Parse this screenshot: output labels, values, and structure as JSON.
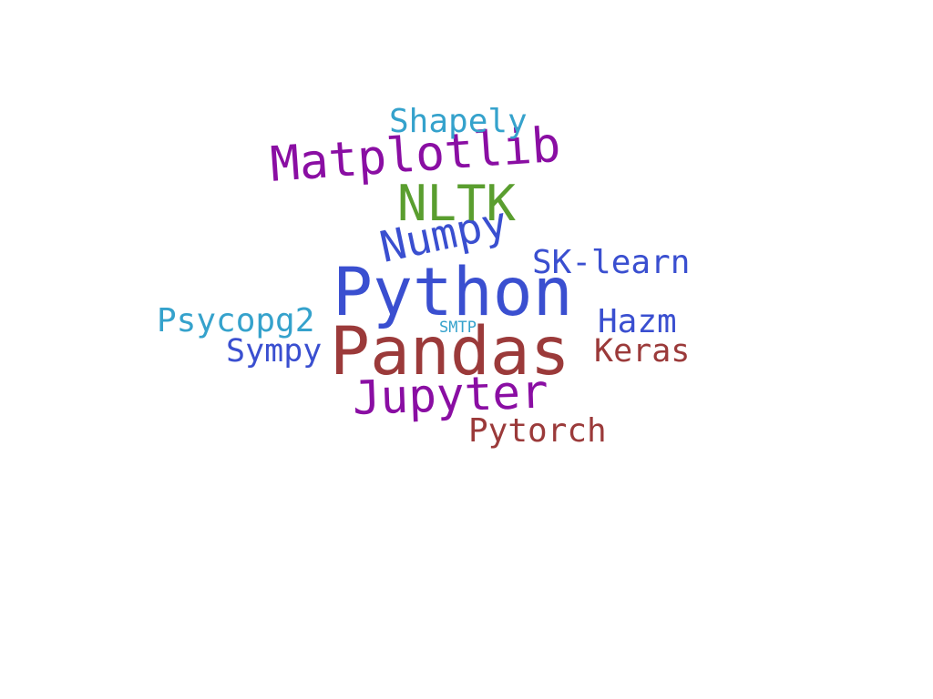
{
  "words": [
    {
      "text": "Python",
      "color": "#3a4fd0"
    },
    {
      "text": "Pandas",
      "color": "#9b3a3a"
    },
    {
      "text": "Matplotlib",
      "color": "#8a0ea3"
    },
    {
      "text": "Jupyter",
      "color": "#8a0ea3"
    },
    {
      "text": "Numpy",
      "color": "#3a4fd0"
    },
    {
      "text": "NLTK",
      "color": "#5a9e2f"
    },
    {
      "text": "SK-learn",
      "color": "#3a4fd0"
    },
    {
      "text": "Shapely",
      "color": "#35a2cc"
    },
    {
      "text": "Psycopg2",
      "color": "#35a2cc"
    },
    {
      "text": "Pytorch",
      "color": "#9b3a3a"
    },
    {
      "text": "Sympy",
      "color": "#3a4fd0"
    },
    {
      "text": "Hazm",
      "color": "#3a4fd0"
    },
    {
      "text": "Keras",
      "color": "#9b3a3a"
    },
    {
      "text": "SMTP",
      "color": "#35a2cc"
    }
  ]
}
